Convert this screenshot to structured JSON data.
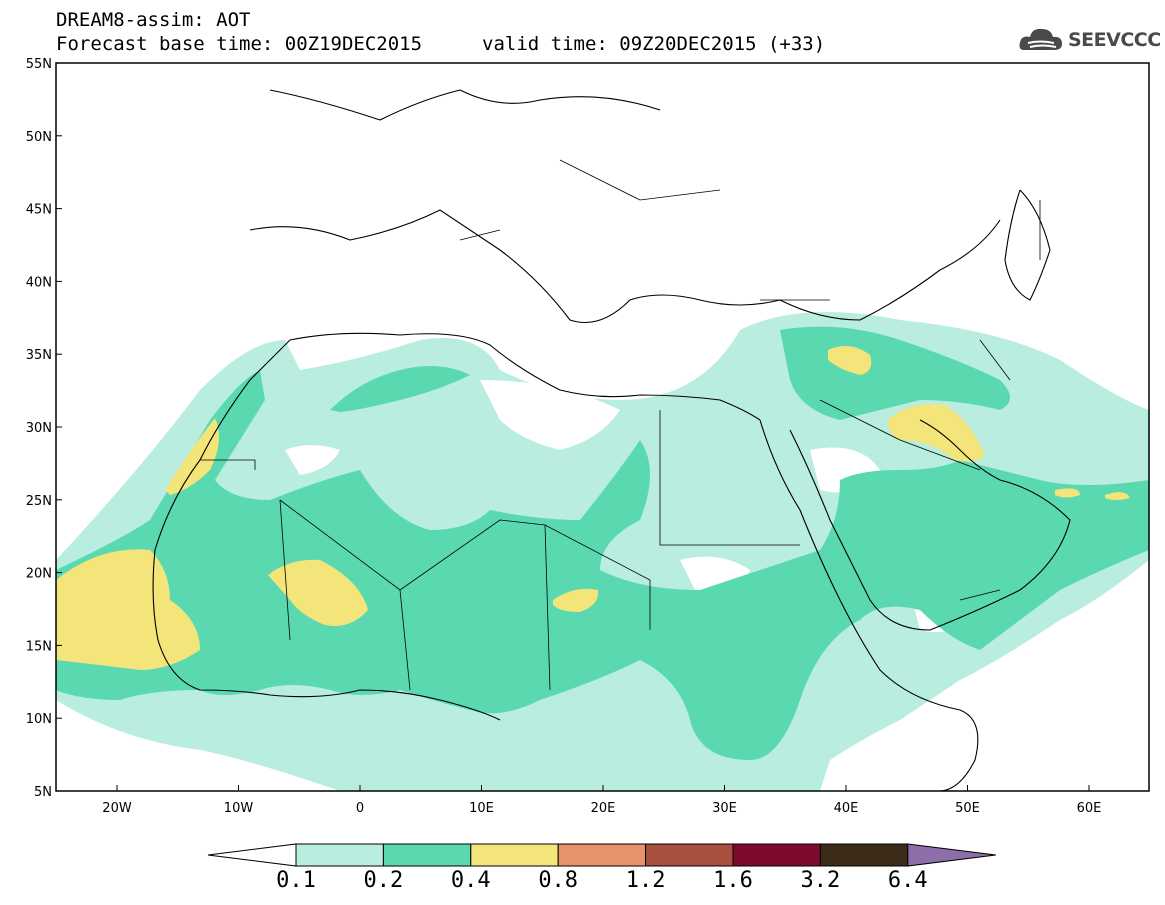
{
  "title": {
    "line1": "DREAM8-assim: AOT",
    "line2": "Forecast base time: 00Z19DEC2015",
    "line3": "valid time: 09Z20DEC2015 (+33)"
  },
  "logo": {
    "text": "SEEVCCC",
    "icon": "cloud-logo-icon"
  },
  "map": {
    "lat_labels": [
      "55N",
      "50N",
      "45N",
      "40N",
      "35N",
      "30N",
      "25N",
      "20N",
      "15N",
      "10N",
      "5N"
    ],
    "lon_labels": [
      "20W",
      "10W",
      "0",
      "10E",
      "20E",
      "30E",
      "40E",
      "50E",
      "60E"
    ]
  },
  "colorbar": {
    "labels": [
      "0.1",
      "0.2",
      "0.4",
      "0.8",
      "1.2",
      "1.6",
      "3.2",
      "6.4"
    ],
    "colors": [
      "#ffffff",
      "#b9ede0",
      "#5ad9b1",
      "#f3e57a",
      "#e6926a",
      "#a8503f",
      "#7e0b2c",
      "#3c2b19",
      "#8c6fa8"
    ]
  }
}
